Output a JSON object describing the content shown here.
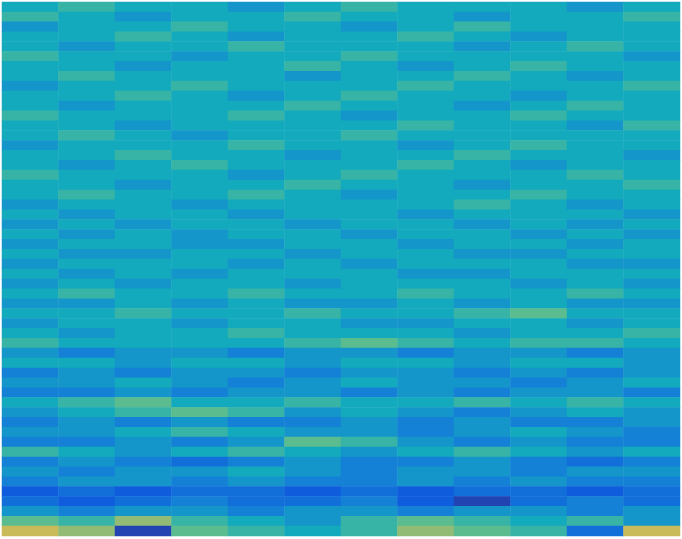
{
  "chart_data": {
    "type": "heatmap",
    "tick_labels": false,
    "color_range": [
      -6,
      6
    ],
    "cells": [
      [
        0,
        1,
        0,
        0,
        -1,
        0,
        1,
        0,
        0,
        0,
        -1,
        0
      ],
      [
        1,
        0,
        -1,
        0,
        0,
        1,
        0,
        0,
        -1,
        0,
        0,
        1
      ],
      [
        -1,
        0,
        0,
        1,
        0,
        0,
        -1,
        0,
        1,
        0,
        0,
        0
      ],
      [
        0,
        0,
        1,
        0,
        -1,
        0,
        0,
        1,
        0,
        -1,
        0,
        0
      ],
      [
        0,
        -1,
        0,
        0,
        1,
        0,
        0,
        0,
        -1,
        0,
        1,
        0
      ],
      [
        1,
        0,
        0,
        -1,
        0,
        0,
        1,
        0,
        0,
        0,
        0,
        -1
      ],
      [
        0,
        0,
        -1,
        0,
        0,
        1,
        0,
        -1,
        0,
        1,
        0,
        0
      ],
      [
        0,
        1,
        0,
        0,
        0,
        -1,
        0,
        0,
        1,
        0,
        -1,
        0
      ],
      [
        -1,
        0,
        0,
        1,
        0,
        0,
        0,
        1,
        0,
        0,
        0,
        1
      ],
      [
        0,
        0,
        1,
        0,
        -1,
        0,
        1,
        0,
        0,
        -1,
        0,
        0
      ],
      [
        0,
        -1,
        0,
        0,
        0,
        1,
        0,
        0,
        -1,
        0,
        1,
        0
      ],
      [
        1,
        0,
        0,
        0,
        1,
        0,
        -1,
        0,
        0,
        1,
        0,
        0
      ],
      [
        0,
        0,
        -1,
        0,
        0,
        0,
        0,
        1,
        0,
        0,
        -1,
        1
      ],
      [
        0,
        1,
        0,
        -1,
        0,
        0,
        1,
        0,
        0,
        0,
        0,
        0
      ],
      [
        -1,
        0,
        0,
        0,
        1,
        0,
        0,
        -1,
        0,
        1,
        0,
        0
      ],
      [
        0,
        0,
        1,
        0,
        0,
        -1,
        0,
        0,
        1,
        0,
        0,
        -1
      ],
      [
        0,
        -1,
        0,
        1,
        0,
        0,
        0,
        1,
        0,
        -1,
        0,
        0
      ],
      [
        1,
        0,
        0,
        0,
        -1,
        0,
        1,
        0,
        0,
        0,
        1,
        0
      ],
      [
        0,
        0,
        -1,
        0,
        0,
        1,
        0,
        0,
        -1,
        0,
        0,
        1
      ],
      [
        0,
        1,
        0,
        0,
        1,
        0,
        -1,
        0,
        0,
        1,
        0,
        0
      ],
      [
        -1,
        0,
        0,
        -1,
        0,
        0,
        0,
        0,
        1,
        0,
        -1,
        0
      ],
      [
        0,
        -1,
        0,
        0,
        -1,
        0,
        0,
        -1,
        0,
        0,
        0,
        -1
      ],
      [
        -1,
        0,
        -1,
        0,
        0,
        -1,
        0,
        0,
        -1,
        0,
        -1,
        0
      ],
      [
        0,
        -1,
        0,
        -1,
        0,
        0,
        -1,
        0,
        0,
        -1,
        0,
        -1
      ],
      [
        -1,
        0,
        0,
        -1,
        -1,
        0,
        0,
        -1,
        0,
        0,
        -1,
        0
      ],
      [
        0,
        -1,
        -1,
        0,
        0,
        -1,
        0,
        0,
        -1,
        -1,
        0,
        0
      ],
      [
        -1,
        0,
        0,
        0,
        -1,
        0,
        -1,
        0,
        0,
        0,
        -1,
        -1
      ],
      [
        0,
        -1,
        0,
        -1,
        0,
        0,
        0,
        -1,
        -1,
        0,
        0,
        0
      ],
      [
        -1,
        0,
        -1,
        0,
        0,
        -1,
        0,
        0,
        0,
        -1,
        0,
        -1
      ],
      [
        0,
        1,
        0,
        0,
        1,
        0,
        0,
        1,
        0,
        0,
        1,
        0
      ],
      [
        -1,
        -1,
        0,
        -1,
        0,
        -1,
        -1,
        0,
        -1,
        0,
        -1,
        -1
      ],
      [
        0,
        0,
        1,
        0,
        0,
        1,
        0,
        0,
        1,
        2,
        0,
        0
      ],
      [
        -1,
        0,
        0,
        -1,
        0,
        0,
        -1,
        -1,
        0,
        0,
        -1,
        0
      ],
      [
        0,
        -1,
        0,
        0,
        1,
        0,
        0,
        0,
        -1,
        0,
        0,
        1
      ],
      [
        1,
        0,
        0,
        0,
        0,
        1,
        2,
        1,
        0,
        1,
        1,
        0
      ],
      [
        -1,
        -2,
        -1,
        -1,
        -2,
        -1,
        -1,
        -2,
        -1,
        -1,
        -2,
        -1
      ],
      [
        0,
        0,
        -1,
        0,
        0,
        -1,
        0,
        0,
        -1,
        0,
        0,
        -1
      ],
      [
        -2,
        -1,
        -2,
        -1,
        -1,
        -2,
        -1,
        -1,
        -2,
        -1,
        -2,
        -1
      ],
      [
        -1,
        -1,
        0,
        -1,
        -2,
        -1,
        0,
        -1,
        -1,
        -2,
        -1,
        0
      ],
      [
        -2,
        -2,
        -1,
        -2,
        -1,
        -1,
        -2,
        -1,
        -2,
        -1,
        -1,
        -2
      ],
      [
        0,
        1,
        2,
        0,
        0,
        1,
        0,
        0,
        1,
        0,
        1,
        0
      ],
      [
        -1,
        0,
        1,
        2,
        1,
        -1,
        0,
        -1,
        -2,
        -1,
        0,
        -1
      ],
      [
        -2,
        -1,
        -2,
        -1,
        -2,
        -2,
        -1,
        -2,
        -1,
        -2,
        -2,
        -1
      ],
      [
        -1,
        -1,
        0,
        1,
        0,
        -1,
        -1,
        -2,
        -1,
        0,
        -1,
        -2
      ],
      [
        -2,
        -2,
        -1,
        -2,
        -1,
        2,
        1,
        -1,
        -2,
        -1,
        -2,
        -2
      ],
      [
        1,
        0,
        -1,
        0,
        1,
        0,
        -1,
        0,
        1,
        0,
        -1,
        0
      ],
      [
        -2,
        -1,
        -2,
        -3,
        -2,
        -1,
        -2,
        -2,
        -1,
        -2,
        -3,
        -2
      ],
      [
        -1,
        -2,
        -1,
        -1,
        0,
        -1,
        -2,
        -1,
        -1,
        -2,
        -1,
        -1
      ],
      [
        -2,
        -1,
        -1,
        -2,
        -1,
        -2,
        -2,
        -1,
        -2,
        -1,
        -2,
        -2
      ],
      [
        -4,
        -3,
        -4,
        -3,
        -3,
        -4,
        -3,
        -4,
        -3,
        -3,
        -4,
        -3
      ],
      [
        -3,
        -4,
        -3,
        -2,
        -3,
        -3,
        -2,
        -4,
        -5,
        -3,
        -2,
        -3
      ],
      [
        -1,
        -2,
        -1,
        -1,
        -2,
        -1,
        -1,
        -2,
        -1,
        -1,
        -2,
        -1
      ],
      [
        2,
        1,
        3,
        1,
        0,
        -1,
        1,
        2,
        1,
        0,
        1,
        -1
      ],
      [
        4,
        3,
        -5,
        2,
        1,
        0,
        1,
        3,
        2,
        1,
        -3,
        4
      ]
    ]
  }
}
